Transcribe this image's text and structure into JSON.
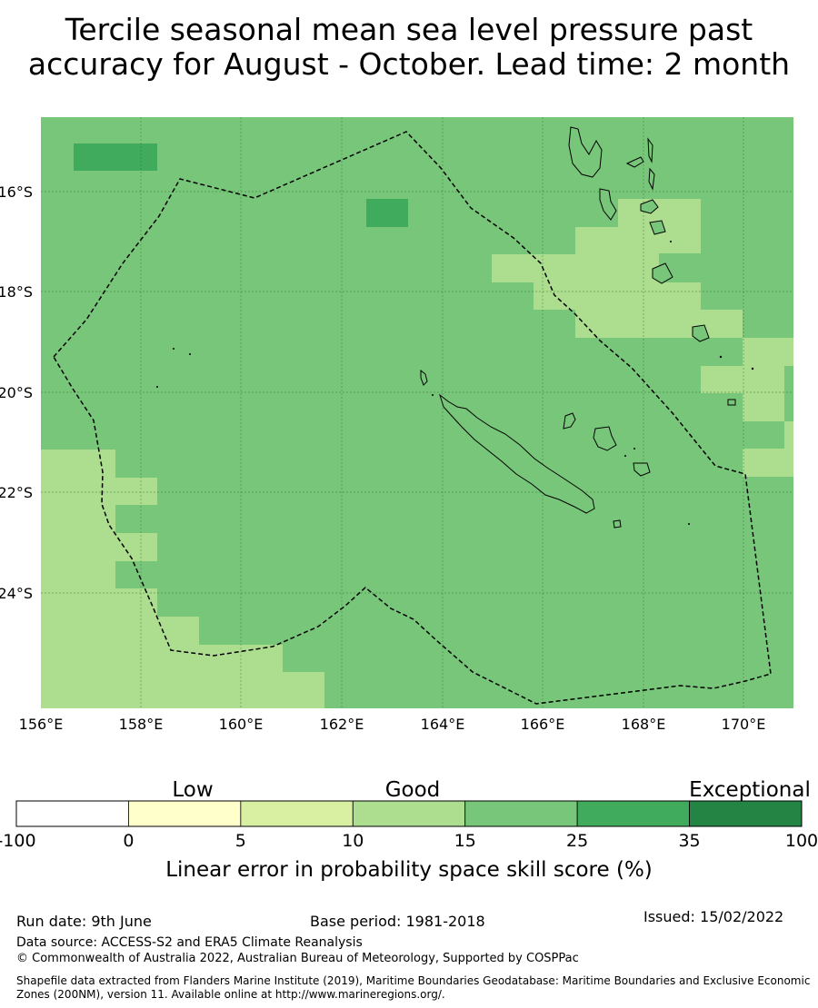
{
  "title_line1": "Tercile seasonal mean sea level pressure past",
  "title_line2": "accuracy for August - October. Lead time: 2 month",
  "map": {
    "lon_ticks": [
      "156°E",
      "158°E",
      "160°E",
      "162°E",
      "164°E",
      "166°E",
      "168°E",
      "170°E"
    ],
    "lat_ticks": [
      "16°S",
      "18°S",
      "20°S",
      "22°S",
      "24°S"
    ],
    "colors": {
      "background": "#78c679",
      "light": "#addd8e",
      "dark": "#41ab5d",
      "land_outline": "#000000",
      "eez_line": "#000000"
    }
  },
  "legend": {
    "category_labels": [
      "Low",
      "Good",
      "Exceptional"
    ],
    "bins": [
      {
        "from": "-100",
        "to": "0",
        "color": "#ffffff"
      },
      {
        "from": "0",
        "to": "5",
        "color": "#ffffcc"
      },
      {
        "from": "5",
        "to": "10",
        "color": "#d9f0a3"
      },
      {
        "from": "10",
        "to": "15",
        "color": "#addd8e"
      },
      {
        "from": "15",
        "to": "25",
        "color": "#78c679"
      },
      {
        "from": "25",
        "to": "35",
        "color": "#41ab5d"
      },
      {
        "from": "35",
        "to": "100",
        "color": "#238443"
      }
    ],
    "tick_labels": [
      "-100",
      "0",
      "5",
      "10",
      "15",
      "25",
      "35",
      "100"
    ],
    "xlabel": "Linear error in probability space skill score (%)"
  },
  "footer": {
    "run_date": "Run date: 9th June",
    "base_period": "Base period: 1981-2018",
    "issued": "Issued: 15/02/2022",
    "data_source": "Data source: ACCESS-S2 and ERA5 Climate Reanalysis",
    "copyright": "© Commonwealth of Australia 2022, Australian Bureau of Meteorology, Supported by COSPPac",
    "shapefile_1": "Shapefile data extracted from Flanders Marine Institute (2019), Maritime Boundaries Geodatabase: Maritime Boundaries and Exclusive Economic",
    "shapefile_2": "Zones (200NM), version 11. Available online at http://www.marineregions.org/."
  }
}
